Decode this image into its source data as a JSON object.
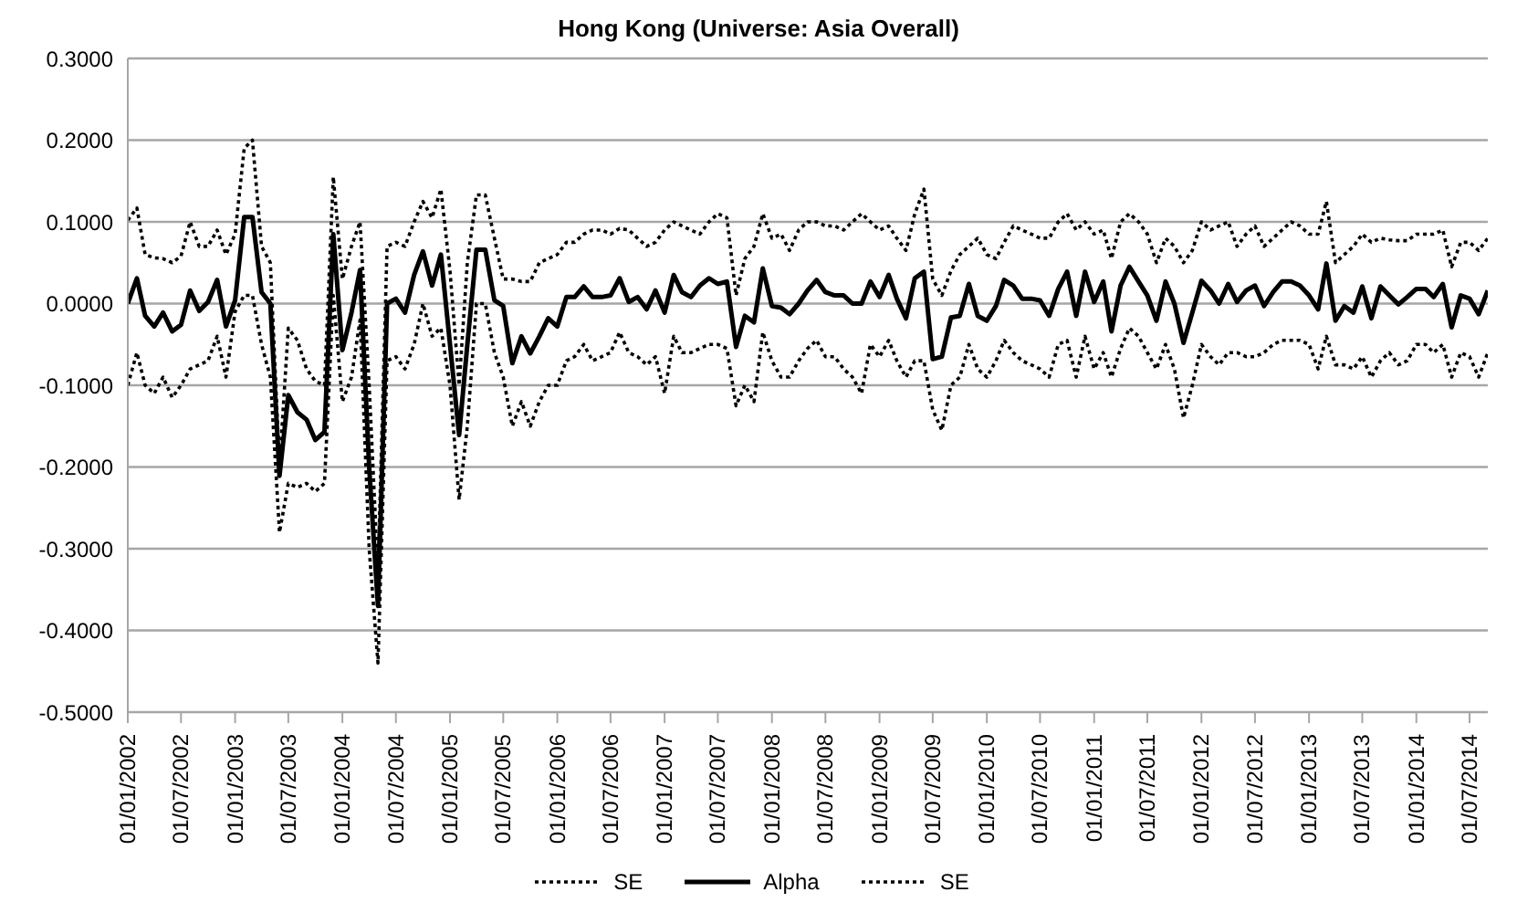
{
  "chart_data": {
    "type": "line",
    "title": "Hong Kong (Universe: Asia Overall)",
    "x": [
      "2002-01",
      "2002-02",
      "2002-03",
      "2002-04",
      "2002-05",
      "2002-06",
      "2002-07",
      "2002-08",
      "2002-09",
      "2002-10",
      "2002-11",
      "2002-12",
      "2003-01",
      "2003-02",
      "2003-03",
      "2003-04",
      "2003-05",
      "2003-06",
      "2003-07",
      "2003-08",
      "2003-09",
      "2003-10",
      "2003-11",
      "2003-12",
      "2004-01",
      "2004-02",
      "2004-03",
      "2004-04",
      "2004-05",
      "2004-06",
      "2004-07",
      "2004-08",
      "2004-09",
      "2004-10",
      "2004-11",
      "2004-12",
      "2005-01",
      "2005-02",
      "2005-03",
      "2005-04",
      "2005-05",
      "2005-06",
      "2005-07",
      "2005-08",
      "2005-09",
      "2005-10",
      "2005-11",
      "2005-12",
      "2006-01",
      "2006-02",
      "2006-03",
      "2006-04",
      "2006-05",
      "2006-06",
      "2006-07",
      "2006-08",
      "2006-09",
      "2006-10",
      "2006-11",
      "2006-12",
      "2007-01",
      "2007-02",
      "2007-03",
      "2007-04",
      "2007-05",
      "2007-06",
      "2007-07",
      "2007-08",
      "2007-09",
      "2007-10",
      "2007-11",
      "2007-12",
      "2008-01",
      "2008-02",
      "2008-03",
      "2008-04",
      "2008-05",
      "2008-06",
      "2008-07",
      "2008-08",
      "2008-09",
      "2008-10",
      "2008-11",
      "2008-12",
      "2009-01",
      "2009-02",
      "2009-03",
      "2009-04",
      "2009-05",
      "2009-06",
      "2009-07",
      "2009-08",
      "2009-09",
      "2009-10",
      "2009-11",
      "2009-12",
      "2010-01",
      "2010-02",
      "2010-03",
      "2010-04",
      "2010-05",
      "2010-06",
      "2010-07",
      "2010-08",
      "2010-09",
      "2010-10",
      "2010-11",
      "2010-12",
      "2011-01",
      "2011-02",
      "2011-03",
      "2011-04",
      "2011-05",
      "2011-06",
      "2011-07",
      "2011-08",
      "2011-09",
      "2011-10",
      "2011-11",
      "2011-12",
      "2012-01",
      "2012-02",
      "2012-03",
      "2012-04",
      "2012-05",
      "2012-06",
      "2012-07",
      "2012-08",
      "2012-09",
      "2012-10",
      "2012-11",
      "2012-12",
      "2013-01",
      "2013-02",
      "2013-03",
      "2013-04",
      "2013-05",
      "2013-06",
      "2013-07",
      "2013-08",
      "2013-09",
      "2013-10",
      "2013-11",
      "2013-12",
      "2014-01",
      "2014-02",
      "2014-03",
      "2014-04",
      "2014-05",
      "2014-06",
      "2014-07",
      "2014-08",
      "2014-09"
    ],
    "series": [
      {
        "name": "SE",
        "color": "#000000",
        "line_style": "dotted",
        "values": [
          0.102,
          0.117,
          0.06,
          0.056,
          0.055,
          0.05,
          0.058,
          0.1,
          0.07,
          0.07,
          0.09,
          0.06,
          0.085,
          0.19,
          0.2,
          0.07,
          0.05,
          -0.2,
          -0.03,
          -0.045,
          -0.08,
          -0.095,
          -0.1,
          0.155,
          0.03,
          0.07,
          0.1,
          -0.1,
          -0.33,
          0.07,
          0.075,
          0.07,
          0.1,
          0.125,
          0.105,
          0.14,
          0.04,
          -0.1,
          0.05,
          0.133,
          0.133,
          0.08,
          0.03,
          0.03,
          0.027,
          0.027,
          0.05,
          0.055,
          0.06,
          0.075,
          0.075,
          0.085,
          0.09,
          0.09,
          0.085,
          0.092,
          0.09,
          0.08,
          0.07,
          0.075,
          0.09,
          0.1,
          0.095,
          0.09,
          0.085,
          0.1,
          0.11,
          0.105,
          0.01,
          0.055,
          0.07,
          0.11,
          0.08,
          0.085,
          0.065,
          0.09,
          0.1,
          0.1,
          0.095,
          0.095,
          0.09,
          0.1,
          0.11,
          0.1,
          0.09,
          0.095,
          0.08,
          0.065,
          0.11,
          0.14,
          0.03,
          0.01,
          0.04,
          0.06,
          0.07,
          0.08,
          0.06,
          0.055,
          0.075,
          0.095,
          0.09,
          0.085,
          0.08,
          0.08,
          0.1,
          0.11,
          0.09,
          0.1,
          0.085,
          0.09,
          0.055,
          0.1,
          0.11,
          0.1,
          0.085,
          0.05,
          0.08,
          0.07,
          0.05,
          0.065,
          0.1,
          0.09,
          0.095,
          0.1,
          0.07,
          0.085,
          0.095,
          0.07,
          0.08,
          0.09,
          0.1,
          0.095,
          0.085,
          0.085,
          0.125,
          0.05,
          0.06,
          0.07,
          0.085,
          0.075,
          0.08,
          0.078,
          0.077,
          0.077,
          0.085,
          0.085,
          0.085,
          0.09,
          0.045,
          0.075,
          0.075,
          0.065,
          0.08
        ]
      },
      {
        "name": "Alpha",
        "color": "#000000",
        "line_style": "solid",
        "values": [
          0,
          0.031,
          -0.015,
          -0.028,
          -0.011,
          -0.034,
          -0.026,
          0.016,
          -0.009,
          0.002,
          0.029,
          -0.028,
          0.004,
          0.106,
          0.106,
          0.014,
          0,
          -0.211,
          -0.112,
          -0.133,
          -0.142,
          -0.167,
          -0.157,
          0.085,
          -0.057,
          -0.011,
          0.041,
          -0.2,
          -0.37,
          0,
          0.006,
          -0.011,
          0.035,
          0.064,
          0.022,
          0.06,
          -0.05,
          -0.161,
          -0.05,
          0.066,
          0.066,
          0.004,
          -0.003,
          -0.073,
          -0.04,
          -0.061,
          -0.04,
          -0.018,
          -0.028,
          0.008,
          0.008,
          0.021,
          0.008,
          0.008,
          0.01,
          0.031,
          0.002,
          0.008,
          -0.007,
          0.016,
          -0.011,
          0.035,
          0.014,
          0.008,
          0.022,
          0.031,
          0.024,
          0.027,
          -0.053,
          -0.015,
          -0.023,
          0.043,
          -0.003,
          -0.005,
          -0.013,
          0,
          0.016,
          0.029,
          0.014,
          0.01,
          0.01,
          0,
          0,
          0.027,
          0.008,
          0.035,
          0.006,
          -0.018,
          0.031,
          0.039,
          -0.068,
          -0.065,
          -0.017,
          -0.015,
          0.024,
          -0.015,
          -0.021,
          -0.003,
          0.029,
          0.022,
          0.006,
          0.006,
          0.004,
          -0.015,
          0.018,
          0.039,
          -0.015,
          0.039,
          0.002,
          0.027,
          -0.034,
          0.022,
          0.045,
          0.027,
          0.01,
          -0.021,
          0.027,
          0,
          -0.048,
          -0.011,
          0.028,
          0.016,
          0,
          0.024,
          0.002,
          0.016,
          0.022,
          -0.003,
          0.014,
          0.027,
          0.027,
          0.022,
          0.01,
          -0.007,
          0.049,
          -0.021,
          -0.003,
          -0.011,
          0.021,
          -0.018,
          0.021,
          0.01,
          -0.001,
          0.008,
          0.018,
          0.018,
          0.008,
          0.024,
          -0.029,
          0.01,
          0.006,
          -0.013,
          0.016
        ]
      },
      {
        "name": "SE",
        "color": "#000000",
        "line_style": "dotted",
        "values": [
          -0.1,
          -0.06,
          -0.1,
          -0.11,
          -0.09,
          -0.115,
          -0.1,
          -0.08,
          -0.075,
          -0.07,
          -0.04,
          -0.09,
          -0.01,
          0.01,
          0.01,
          -0.05,
          -0.09,
          -0.28,
          -0.22,
          -0.225,
          -0.22,
          -0.23,
          -0.22,
          0.01,
          -0.12,
          -0.09,
          -0.02,
          -0.3,
          -0.44,
          -0.07,
          -0.065,
          -0.08,
          -0.05,
          0,
          -0.04,
          -0.03,
          -0.1,
          -0.24,
          -0.15,
          0,
          0,
          -0.06,
          -0.09,
          -0.15,
          -0.12,
          -0.15,
          -0.12,
          -0.1,
          -0.1,
          -0.07,
          -0.065,
          -0.05,
          -0.07,
          -0.065,
          -0.06,
          -0.035,
          -0.06,
          -0.065,
          -0.075,
          -0.065,
          -0.11,
          -0.04,
          -0.06,
          -0.06,
          -0.055,
          -0.05,
          -0.05,
          -0.055,
          -0.125,
          -0.1,
          -0.12,
          -0.035,
          -0.07,
          -0.09,
          -0.09,
          -0.07,
          -0.055,
          -0.045,
          -0.065,
          -0.065,
          -0.08,
          -0.09,
          -0.11,
          -0.05,
          -0.065,
          -0.045,
          -0.07,
          -0.09,
          -0.07,
          -0.07,
          -0.13,
          -0.155,
          -0.1,
          -0.09,
          -0.05,
          -0.08,
          -0.09,
          -0.07,
          -0.045,
          -0.06,
          -0.07,
          -0.075,
          -0.08,
          -0.09,
          -0.05,
          -0.045,
          -0.09,
          -0.04,
          -0.08,
          -0.06,
          -0.09,
          -0.055,
          -0.03,
          -0.04,
          -0.06,
          -0.08,
          -0.05,
          -0.08,
          -0.14,
          -0.1,
          -0.05,
          -0.065,
          -0.075,
          -0.06,
          -0.06,
          -0.065,
          -0.065,
          -0.06,
          -0.05,
          -0.045,
          -0.045,
          -0.045,
          -0.05,
          -0.08,
          -0.04,
          -0.075,
          -0.075,
          -0.08,
          -0.065,
          -0.09,
          -0.07,
          -0.06,
          -0.075,
          -0.07,
          -0.05,
          -0.05,
          -0.06,
          -0.05,
          -0.09,
          -0.06,
          -0.065,
          -0.09,
          -0.06
        ]
      }
    ],
    "xlim": [
      "2002-01",
      "2014-09"
    ],
    "xticks": [
      {
        "value": "2002-01",
        "label": "01/01/2002"
      },
      {
        "value": "2002-07",
        "label": "01/07/2002"
      },
      {
        "value": "2003-01",
        "label": "01/01/2003"
      },
      {
        "value": "2003-07",
        "label": "01/07/2003"
      },
      {
        "value": "2004-01",
        "label": "01/01/2004"
      },
      {
        "value": "2004-07",
        "label": "01/07/2004"
      },
      {
        "value": "2005-01",
        "label": "01/01/2005"
      },
      {
        "value": "2005-07",
        "label": "01/07/2005"
      },
      {
        "value": "2006-01",
        "label": "01/01/2006"
      },
      {
        "value": "2006-07",
        "label": "01/07/2006"
      },
      {
        "value": "2007-01",
        "label": "01/01/2007"
      },
      {
        "value": "2007-07",
        "label": "01/07/2007"
      },
      {
        "value": "2008-01",
        "label": "01/01/2008"
      },
      {
        "value": "2008-07",
        "label": "01/07/2008"
      },
      {
        "value": "2009-01",
        "label": "01/01/2009"
      },
      {
        "value": "2009-07",
        "label": "01/07/2009"
      },
      {
        "value": "2010-01",
        "label": "01/01/2010"
      },
      {
        "value": "2010-07",
        "label": "01/07/2010"
      },
      {
        "value": "2011-01",
        "label": "01/01/2011"
      },
      {
        "value": "2011-07",
        "label": "01/07/2011"
      },
      {
        "value": "2012-01",
        "label": "01/01/2012"
      },
      {
        "value": "2012-07",
        "label": "01/07/2012"
      },
      {
        "value": "2013-01",
        "label": "01/01/2013"
      },
      {
        "value": "2013-07",
        "label": "01/07/2013"
      },
      {
        "value": "2014-01",
        "label": "01/01/2014"
      },
      {
        "value": "2014-07",
        "label": "01/07/2014"
      }
    ],
    "ylim": [
      -0.5,
      0.3
    ],
    "yticks": [
      {
        "value": -0.5,
        "label": "-0.5000"
      },
      {
        "value": -0.4,
        "label": "-0.4000"
      },
      {
        "value": -0.3,
        "label": "-0.3000"
      },
      {
        "value": -0.2,
        "label": "-0.2000"
      },
      {
        "value": -0.1,
        "label": "-0.1000"
      },
      {
        "value": 0,
        "label": "0.0000"
      },
      {
        "value": 0.1,
        "label": "0.1000"
      },
      {
        "value": 0.2,
        "label": "0.2000"
      },
      {
        "value": 0.3,
        "label": "0.3000"
      }
    ],
    "grid": "y",
    "legend": "bottom",
    "marker": "none"
  }
}
